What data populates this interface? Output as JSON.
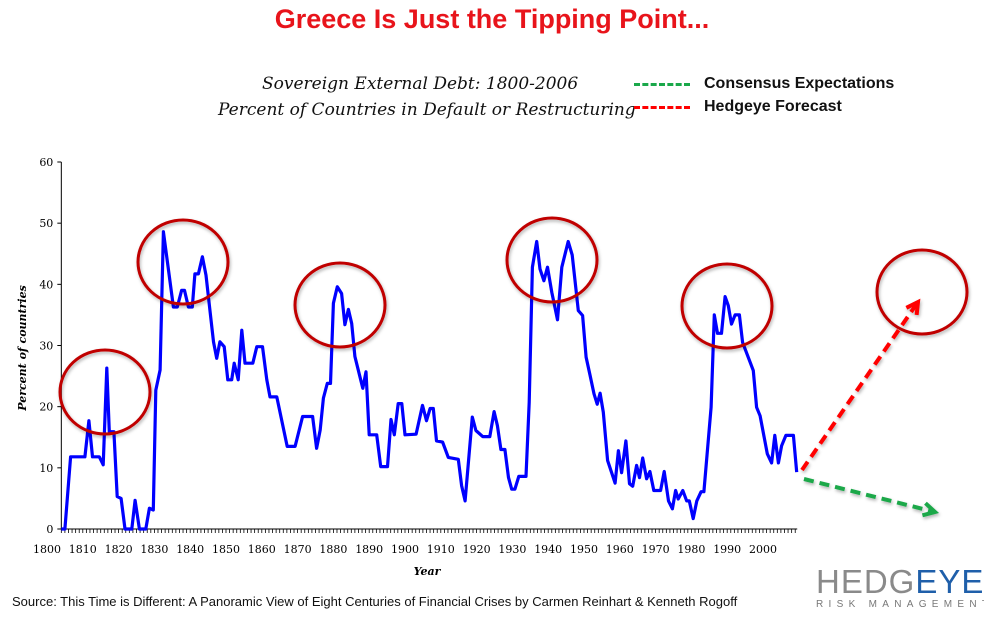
{
  "headline": "Greece Is Just the Tipping Point...",
  "subtitle_line1": "Sovereign External Debt: 1800-2006",
  "subtitle_line2": "Percent of Countries in Default or Restructuring",
  "legend": [
    {
      "label": "Consensus Expectations",
      "color": "#1aa84a",
      "style": "dashed"
    },
    {
      "label": "Hedgeye Forecast",
      "color": "#ff0000",
      "style": "dashed"
    }
  ],
  "source": "Source: This Time is Different: A Panoramic View of Eight Centuries of Financial Crises by Carmen Reinhart & Kenneth Rogoff",
  "logo": {
    "brand_a": "HEDG",
    "brand_b": "EYE",
    "tagline": "RISK MANAGEMENT"
  },
  "chart_data": {
    "type": "line",
    "xlabel": "Year",
    "ylabel": "Percent of countries",
    "xlim": [
      1804,
      2009
    ],
    "ylim": [
      0,
      60
    ],
    "x_ticks": [
      "1800",
      "1810",
      "1820",
      "1830",
      "1840",
      "1850",
      "1860",
      "1870",
      "1880",
      "1890",
      "1900",
      "1910",
      "1920",
      "1930",
      "1940",
      "1950",
      "1960",
      "1970",
      "1980",
      "1990",
      "2000"
    ],
    "y_ticks": [
      "0",
      "10",
      "20",
      "30",
      "40",
      "50",
      "60"
    ],
    "grid": false,
    "legend_placement": "top-right",
    "series_color": "#0000ff",
    "circle_color": "#c00000",
    "series": [
      {
        "x": [
          1804,
          1805,
          1806.6,
          1810.6,
          1811.7,
          1812.7,
          1814.6,
          1815.7,
          1816.7,
          1817.4,
          1818.7,
          1819.6,
          1820.7,
          1821.8,
          1823.7,
          1824.6,
          1825.8,
          1827.6,
          1828.6,
          1829.7,
          1830.4,
          1831.6,
          1832.5,
          1835.3,
          1836.4,
          1837.6,
          1838.4,
          1839.5,
          1840.6,
          1841.3,
          1842.3,
          1843.4,
          1844.4,
          1845.5,
          1846.5,
          1847.4,
          1848.3,
          1849.5,
          1850.5,
          1851.6,
          1852.3,
          1853.4,
          1854.4,
          1855.3,
          1857.5,
          1858.6,
          1860.2,
          1861.4,
          1862.3,
          1864.2,
          1867.1,
          1869.3,
          1871.4,
          1874.2,
          1875.3,
          1876.3,
          1877.2,
          1878.3,
          1879.2,
          1880,
          1881.1,
          1882.3,
          1883.2,
          1884.2,
          1885.1,
          1886,
          1888.2,
          1889.1,
          1890,
          1892.1,
          1893.2,
          1895.1,
          1896.1,
          1897,
          1898.1,
          1899.1,
          1900,
          1903.1,
          1904.9,
          1906,
          1907,
          1907.9,
          1908.8,
          1910.5,
          1912.1,
          1914.9,
          1915.8,
          1916.8,
          1918.8,
          1919.8,
          1921.7,
          1923.7,
          1924.9,
          1925.8,
          1926.8,
          1927.9,
          1928.9,
          1929.8,
          1930.7,
          1931.8,
          1933.8,
          1934.7,
          1935.6,
          1936.8,
          1937.7,
          1938.8,
          1939.8,
          1941,
          1942.6,
          1943.8,
          1945.6,
          1946.7,
          1948.4,
          1949.6,
          1950.6,
          1951.7,
          1952.8,
          1953.7,
          1954.5,
          1955.4,
          1956.6,
          1958.7,
          1959.6,
          1960.5,
          1961.7,
          1962.7,
          1963.6,
          1964.7,
          1965.5,
          1966.4,
          1967.5,
          1968.4,
          1969.5,
          1971.4,
          1972.4,
          1973.6,
          1974.7,
          1975.6,
          1976.3,
          1977.6,
          1978.7,
          1979.4,
          1980.5,
          1981.5,
          1982.7,
          1983.5,
          1985.5,
          1986.4,
          1987.3,
          1988.4,
          1989.4,
          1990.3,
          1991.2,
          1992.2,
          1993.4,
          1994.3,
          1997.3,
          1998.2,
          1999.2,
          2001.2,
          2002.4,
          2003.3,
          2004.3,
          2005.2,
          2006.4,
          2008.5,
          2009.4
        ],
        "y": [
          0,
          0,
          11.8,
          11.8,
          17.7,
          11.8,
          11.8,
          10.5,
          26.3,
          15.9,
          15.9,
          5.3,
          5.0,
          0,
          0,
          4.7,
          0,
          0,
          3.4,
          3.1,
          22.7,
          26,
          48.6,
          36.3,
          36.3,
          39,
          39,
          36.3,
          36.3,
          41.7,
          41.7,
          44.5,
          41.5,
          35.8,
          30.6,
          27.9,
          30.6,
          29.8,
          24.4,
          24.4,
          27.1,
          24.4,
          32.5,
          27.1,
          27.1,
          29.8,
          29.8,
          24.4,
          21.6,
          21.6,
          13.5,
          13.5,
          18.4,
          18.4,
          13.2,
          16.2,
          21.4,
          23.8,
          23.8,
          36.9,
          39.6,
          38.5,
          33.4,
          35.9,
          33.6,
          28.2,
          23,
          25.7,
          15.4,
          15.4,
          10.2,
          10.2,
          17.9,
          15.4,
          20.5,
          20.5,
          15.4,
          15.5,
          20.2,
          17.7,
          19.7,
          19.7,
          14.4,
          14.2,
          11.7,
          11.4,
          7.1,
          4.6,
          18.3,
          16.1,
          15.1,
          15.1,
          19.2,
          16.9,
          13,
          13,
          8.4,
          6.5,
          6.5,
          8.6,
          8.6,
          20.7,
          42.8,
          47,
          42.5,
          40.6,
          42.8,
          38.7,
          34.2,
          42.8,
          47,
          44.8,
          35.7,
          34.9,
          28.1,
          25.1,
          22.1,
          20.4,
          22.2,
          19.1,
          11.2,
          7.5,
          12.8,
          9.2,
          14.4,
          7.4,
          7,
          10.4,
          8.4,
          11.6,
          8.2,
          9.4,
          6.3,
          6.3,
          9.4,
          4.6,
          3.3,
          6.3,
          4.9,
          6.3,
          4.6,
          4.6,
          1.7,
          4.6,
          6.1,
          6.1,
          19.9,
          35,
          32,
          32,
          38,
          36.5,
          33.5,
          35,
          35,
          30.5,
          25.9,
          19.9,
          18.5,
          12.3,
          10.8,
          15.3,
          10.8,
          13.6,
          15.3,
          15.3,
          9.3
        ]
      }
    ]
  }
}
